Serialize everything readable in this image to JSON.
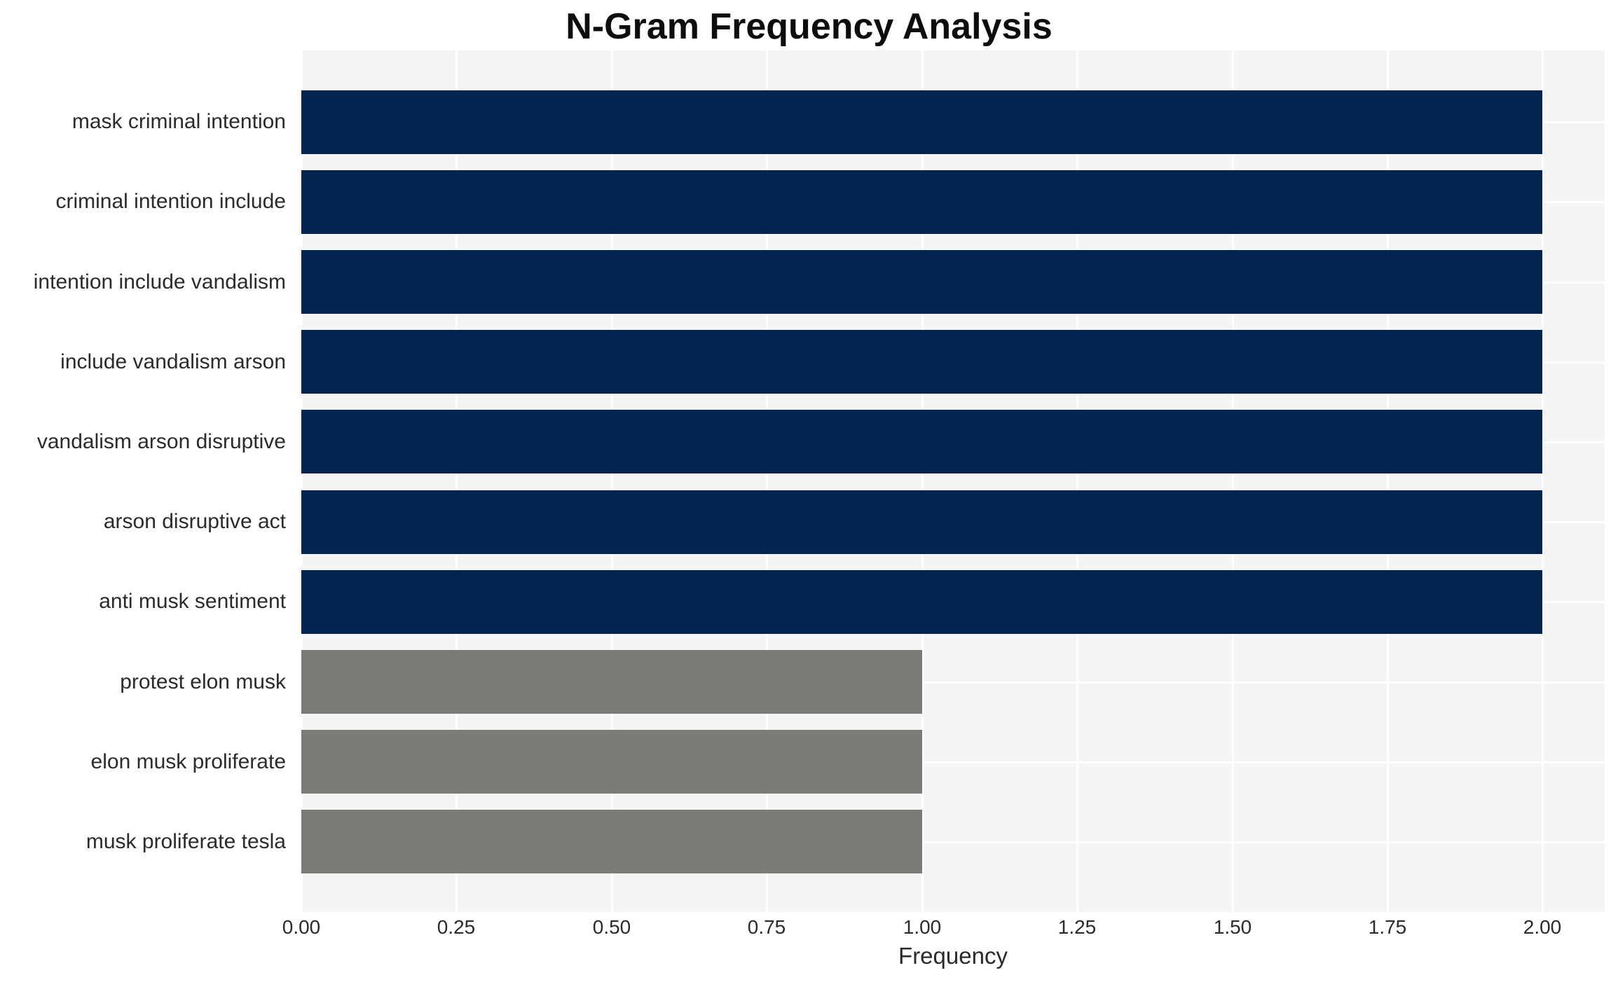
{
  "chart_data": {
    "type": "bar",
    "orientation": "horizontal",
    "title": "N-Gram Frequency Analysis",
    "xlabel": "Frequency",
    "ylabel": "",
    "categories": [
      "mask criminal intention",
      "criminal intention include",
      "intention include vandalism",
      "include vandalism arson",
      "vandalism arson disruptive",
      "arson disruptive act",
      "anti musk sentiment",
      "protest elon musk",
      "elon musk proliferate",
      "musk proliferate tesla"
    ],
    "values": [
      2,
      2,
      2,
      2,
      2,
      2,
      2,
      1,
      1,
      1
    ],
    "bar_colors": [
      "#02244E",
      "#02244E",
      "#02244E",
      "#02244E",
      "#02244E",
      "#02244E",
      "#02244E",
      "#7B7B78",
      "#7B7B78",
      "#7B7B78"
    ],
    "xlim": [
      0,
      2.1
    ],
    "xtick_values": [
      0.0,
      0.25,
      0.5,
      0.75,
      1.0,
      1.25,
      1.5,
      1.75,
      2.0
    ],
    "xtick_labels": [
      "0.00",
      "0.25",
      "0.50",
      "0.75",
      "1.00",
      "1.25",
      "1.50",
      "1.75",
      "2.00"
    ],
    "grid": true,
    "legend": false,
    "colors": {
      "plot_background": "#F5F5F6",
      "grid": "#FFFFFF",
      "bar_high": "#02244E",
      "bar_low": "#7B7B78",
      "text": "#2B2B2B",
      "title_text": "#0D0D0D"
    }
  }
}
